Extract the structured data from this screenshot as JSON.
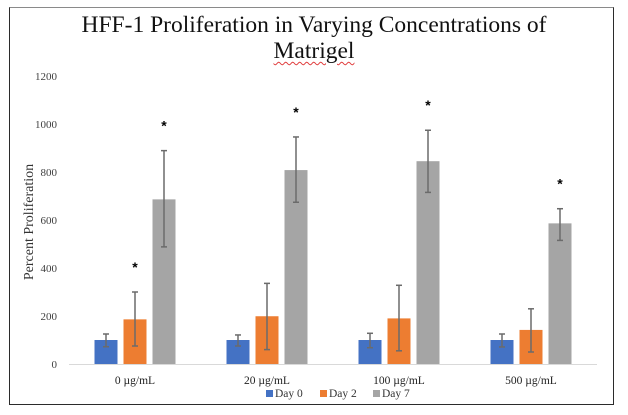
{
  "chart_data": {
    "type": "bar",
    "title": "HFF-1 Proliferation in Varying Concentrations of Matrigel",
    "title_lines": [
      "HFF-1 Proliferation in Varying Concentrations of",
      "Matrigel"
    ],
    "xlabel": "",
    "ylabel": "Percent Proliferation",
    "ylim": [
      0,
      1200
    ],
    "yticks": [
      0,
      200,
      400,
      600,
      800,
      1000,
      1200
    ],
    "grid": false,
    "legend_position": "bottom",
    "categories": [
      "0 µg/mL",
      "20 µg/mL",
      "100 µg/mL",
      "500 µg/mL"
    ],
    "series": [
      {
        "name": "Day 0",
        "color": "#4472C4",
        "values": [
          100,
          100,
          100,
          100
        ],
        "error_low": [
          72,
          75,
          68,
          71
        ],
        "error_high": [
          125,
          121,
          128,
          125
        ],
        "significant": [
          false,
          false,
          false,
          false
        ]
      },
      {
        "name": "Day 2",
        "color": "#ED7D31",
        "values": [
          186,
          199,
          190,
          142
        ],
        "error_low": [
          75,
          60,
          55,
          50
        ],
        "error_high": [
          300,
          336,
          328,
          230
        ],
        "significant": [
          true,
          false,
          false,
          false
        ]
      },
      {
        "name": "Day 7",
        "color": "#A5A5A5",
        "values": [
          686,
          808,
          845,
          586
        ],
        "error_low": [
          488,
          674,
          715,
          515
        ],
        "error_high": [
          889,
          946,
          974,
          647
        ],
        "significant": [
          true,
          true,
          true,
          true
        ]
      }
    ],
    "significance_marker": "*",
    "error_bar_color": "#6b6b6b",
    "axis_line_color": "#d9d9d9"
  }
}
